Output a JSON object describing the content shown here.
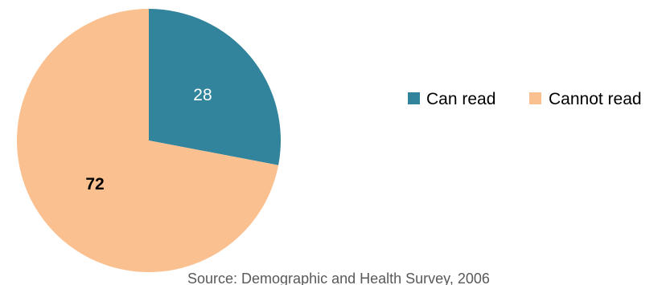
{
  "chart_data": {
    "type": "pie",
    "slices": [
      {
        "label": "Can read",
        "value": 28,
        "color": "#31849b",
        "label_color": "#ffffff",
        "label_bold": false
      },
      {
        "label": "Cannot read",
        "value": 72,
        "color": "#fac090",
        "label_color": "#000000",
        "label_bold": true
      }
    ],
    "legend": {
      "placement": "right",
      "items": [
        "Can read",
        "Cannot read"
      ]
    },
    "source": "Source: Demographic and Health Survey, 2006"
  }
}
